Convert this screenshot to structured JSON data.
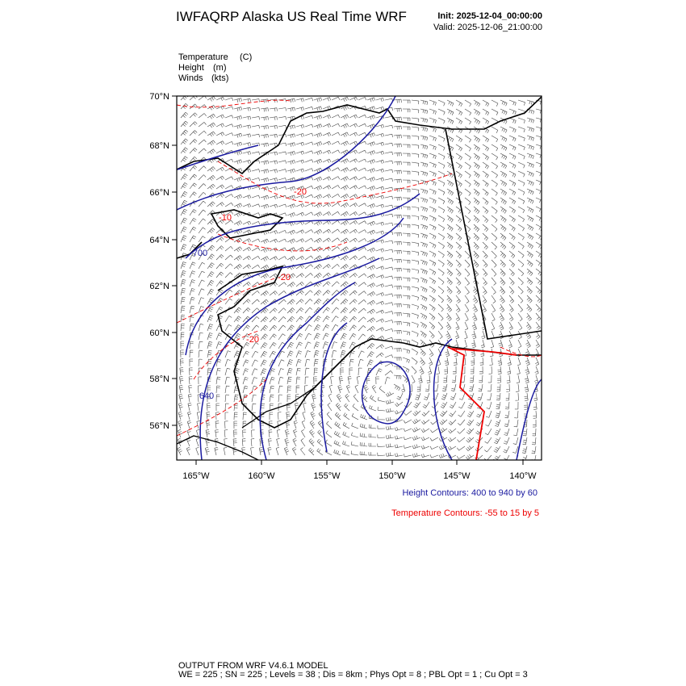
{
  "header": {
    "title": "IWFAQRP Alaska US Real Time WRF",
    "init": "Init: 2025-12-04_00:00:00",
    "valid": "Valid: 2025-12-06_21:00:00"
  },
  "fields": [
    {
      "name": "Temperature",
      "unit": "(C)"
    },
    {
      "name": "Height",
      "unit": "(m)"
    },
    {
      "name": "Winds",
      "unit": "(kts)"
    }
  ],
  "map": {
    "lat_labels": [
      "70°N",
      "68°N",
      "66°N",
      "64°N",
      "62°N",
      "60°N",
      "58°N",
      "56°N"
    ],
    "lon_labels": [
      "165°W",
      "160°W",
      "155°W",
      "150°W",
      "145°W",
      "140°W"
    ],
    "contour_labels": [
      "700",
      "640",
      "-20",
      "-10",
      "-20",
      "-20"
    ]
  },
  "notes": [
    "Height Contours: 400 to 940 by 60",
    "Temperature Contours: -55 to 15 by 5"
  ],
  "footer": [
    "OUTPUT FROM WRF V4.6.1 MODEL",
    "WE = 225 ; SN = 225 ; Levels = 38 ; Dis = 8km ; Phys Opt = 8 ; PBL Opt = 1 ; Cu Opt = 3"
  ]
}
